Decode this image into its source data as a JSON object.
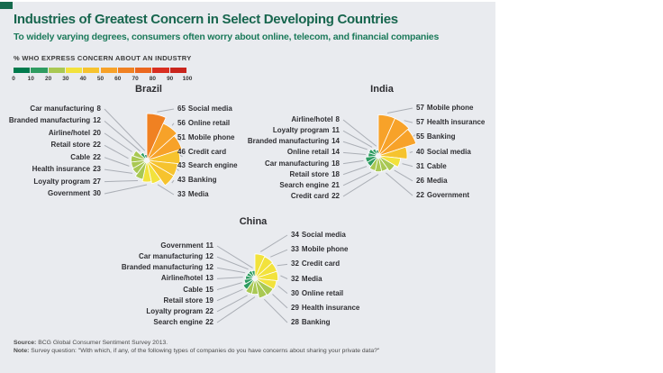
{
  "header": {
    "title": "Industries of Greatest Concern in Select Developing Countries",
    "subtitle": "To widely varying degrees, consumers often worry about online, telecom, and financial companies",
    "scale_label": "% WHO EXPRESS CONCERN ABOUT AN INDUSTRY"
  },
  "legend": {
    "ticks": [
      "0",
      "10",
      "20",
      "30",
      "40",
      "50",
      "60",
      "70",
      "80",
      "90",
      "100"
    ],
    "colors": [
      "#007A4D",
      "#2E9C61",
      "#A9C853",
      "#F2E23C",
      "#F6C32E",
      "#F7A229",
      "#F08122",
      "#EB671F",
      "#D92E21",
      "#C9251D"
    ]
  },
  "chart_data": [
    {
      "type": "rose",
      "title": "Brazil",
      "unit": "% who express concern",
      "items": [
        {
          "label": "Social media",
          "value": 65,
          "side": "right"
        },
        {
          "label": "Online retail",
          "value": 56,
          "side": "right"
        },
        {
          "label": "Mobile phone",
          "value": 51,
          "side": "right"
        },
        {
          "label": "Credit card",
          "value": 46,
          "side": "right"
        },
        {
          "label": "Search engine",
          "value": 43,
          "side": "right"
        },
        {
          "label": "Banking",
          "value": 43,
          "side": "right"
        },
        {
          "label": "Media",
          "value": 33,
          "side": "right"
        },
        {
          "label": "Car manufacturing",
          "value": 8,
          "side": "left"
        },
        {
          "label": "Branded manufacturing",
          "value": 12,
          "side": "left"
        },
        {
          "label": "Airline/hotel",
          "value": 20,
          "side": "left"
        },
        {
          "label": "Retail store",
          "value": 22,
          "side": "left"
        },
        {
          "label": "Cable",
          "value": 22,
          "side": "left"
        },
        {
          "label": "Health insurance",
          "value": 23,
          "side": "left"
        },
        {
          "label": "Loyalty program",
          "value": 27,
          "side": "left"
        },
        {
          "label": "Government",
          "value": 30,
          "side": "left"
        }
      ]
    },
    {
      "type": "rose",
      "title": "India",
      "unit": "% who express concern",
      "items": [
        {
          "label": "Mobile phone",
          "value": 57,
          "side": "right"
        },
        {
          "label": "Health insurance",
          "value": 57,
          "side": "right"
        },
        {
          "label": "Banking",
          "value": 55,
          "side": "right"
        },
        {
          "label": "Social media",
          "value": 40,
          "side": "right"
        },
        {
          "label": "Cable",
          "value": 31,
          "side": "right"
        },
        {
          "label": "Media",
          "value": 26,
          "side": "right"
        },
        {
          "label": "Government",
          "value": 22,
          "side": "right"
        },
        {
          "label": "Airline/hotel",
          "value": 8,
          "side": "left"
        },
        {
          "label": "Loyalty program",
          "value": 11,
          "side": "left"
        },
        {
          "label": "Branded manufacturing",
          "value": 14,
          "side": "left"
        },
        {
          "label": "Online retail",
          "value": 14,
          "side": "left"
        },
        {
          "label": "Car manufacturing",
          "value": 18,
          "side": "left"
        },
        {
          "label": "Retail store",
          "value": 18,
          "side": "left"
        },
        {
          "label": "Search engine",
          "value": 21,
          "side": "left"
        },
        {
          "label": "Credit card",
          "value": 22,
          "side": "left"
        }
      ]
    },
    {
      "type": "rose",
      "title": "China",
      "unit": "% who express concern",
      "items": [
        {
          "label": "Social media",
          "value": 34,
          "side": "right"
        },
        {
          "label": "Mobile phone",
          "value": 33,
          "side": "right"
        },
        {
          "label": "Credit card",
          "value": 32,
          "side": "right"
        },
        {
          "label": "Media",
          "value": 32,
          "side": "right"
        },
        {
          "label": "Online retail",
          "value": 30,
          "side": "right"
        },
        {
          "label": "Health insurance",
          "value": 29,
          "side": "right"
        },
        {
          "label": "Banking",
          "value": 28,
          "side": "right"
        },
        {
          "label": "Government",
          "value": 11,
          "side": "left"
        },
        {
          "label": "Car manufacturing",
          "value": 12,
          "side": "left"
        },
        {
          "label": "Branded manufacturing",
          "value": 12,
          "side": "left"
        },
        {
          "label": "Airline/hotel",
          "value": 13,
          "side": "left"
        },
        {
          "label": "Cable",
          "value": 15,
          "side": "left"
        },
        {
          "label": "Retail store",
          "value": 19,
          "side": "left"
        },
        {
          "label": "Loyalty program",
          "value": 22,
          "side": "left"
        },
        {
          "label": "Search engine",
          "value": 22,
          "side": "left"
        }
      ]
    }
  ],
  "footer": {
    "source_label": "Source:",
    "source_text": "BCG Global Consumer Sentiment Survey 2013.",
    "note_label": "Note:",
    "note_text": "Survey question: \"With which, if any, of the following types of companies do you have concerns about sharing your private data?\""
  }
}
